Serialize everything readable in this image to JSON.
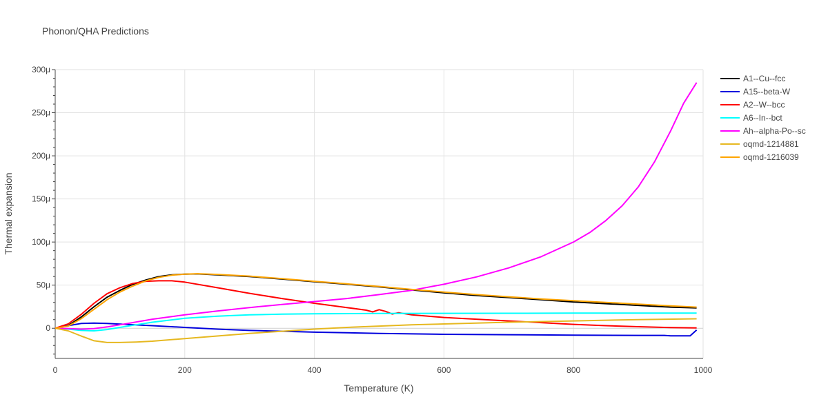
{
  "chart_data": {
    "type": "line",
    "title": "Phonon/QHA Predictions",
    "xlabel": "Temperature (K)",
    "ylabel": "Thermal expansion",
    "xlim": [
      0,
      1000
    ],
    "ylim": [
      -3.5e-05,
      0.0003
    ],
    "x_ticks": [
      0,
      200,
      400,
      600,
      800,
      1000
    ],
    "x_tick_labels": [
      "0",
      "200",
      "400",
      "600",
      "800",
      "1000"
    ],
    "y_ticks": [
      0,
      5e-05,
      0.0001,
      0.00015,
      0.0002,
      0.00025,
      0.0003
    ],
    "y_tick_labels": [
      "0",
      "50μ",
      "100μ",
      "150μ",
      "200μ",
      "250μ",
      "300μ"
    ],
    "grid": true,
    "legend_position": "right",
    "series": [
      {
        "name": "A1--Cu--fcc",
        "color": "#000000",
        "x": [
          0,
          20,
          40,
          60,
          80,
          100,
          120,
          140,
          160,
          180,
          200,
          220,
          250,
          300,
          350,
          400,
          450,
          500,
          550,
          600,
          650,
          700,
          750,
          800,
          850,
          900,
          950,
          990
        ],
        "y": [
          0,
          3e-06,
          1.3e-05,
          2.5e-05,
          3.6e-05,
          4.4e-05,
          5.1e-05,
          5.6e-05,
          6e-05,
          6.2e-05,
          6.28e-05,
          6.3e-05,
          6.2e-05,
          6e-05,
          5.7e-05,
          5.4e-05,
          5.1e-05,
          4.8e-05,
          4.45e-05,
          4.1e-05,
          3.8e-05,
          3.55e-05,
          3.3e-05,
          3.05e-05,
          2.85e-05,
          2.65e-05,
          2.45e-05,
          2.35e-05
        ]
      },
      {
        "name": "A15--beta-W",
        "color": "#0000dd",
        "x": [
          0,
          20,
          40,
          60,
          80,
          100,
          150,
          200,
          250,
          300,
          350,
          400,
          500,
          600,
          700,
          800,
          900,
          940,
          950,
          960,
          980,
          990
        ],
        "y": [
          0,
          3e-06,
          5.5e-06,
          6e-06,
          5.5e-06,
          4.8e-06,
          3e-06,
          1e-06,
          -1e-06,
          -2.5e-06,
          -3.5e-06,
          -4.5e-06,
          -6e-06,
          -7e-06,
          -7.5e-06,
          -8e-06,
          -8.3e-06,
          -8.3e-06,
          -8.8e-06,
          -8.8e-06,
          -8.8e-06,
          -2e-06
        ]
      },
      {
        "name": "A2--W--bcc",
        "color": "#ff0000",
        "x": [
          0,
          20,
          40,
          60,
          80,
          100,
          120,
          140,
          160,
          180,
          200,
          250,
          300,
          350,
          400,
          450,
          480,
          490,
          500,
          510,
          520,
          530,
          550,
          600,
          650,
          700,
          750,
          800,
          850,
          900,
          950,
          990
        ],
        "y": [
          0,
          5e-06,
          1.6e-05,
          2.9e-05,
          4e-05,
          4.7e-05,
          5.2e-05,
          5.45e-05,
          5.5e-05,
          5.5e-05,
          5.35e-05,
          4.7e-05,
          4.05e-05,
          3.45e-05,
          2.9e-05,
          2.4e-05,
          2.1e-05,
          1.9e-05,
          2.15e-05,
          1.95e-05,
          1.65e-05,
          1.8e-05,
          1.55e-05,
          1.25e-05,
          1.05e-05,
          8.5e-06,
          6.5e-06,
          4.5e-06,
          3e-06,
          1.8e-06,
          8e-07,
          3e-07
        ]
      },
      {
        "name": "A6--In--bct",
        "color": "#00ffff",
        "x": [
          0,
          20,
          40,
          60,
          80,
          100,
          125,
          150,
          200,
          250,
          300,
          350,
          400,
          500,
          600,
          700,
          800,
          900,
          990
        ],
        "y": [
          0,
          -1e-06,
          -2.5e-06,
          -3e-06,
          -1.5e-06,
          1e-06,
          4e-06,
          7e-06,
          1.15e-05,
          1.4e-05,
          1.55e-05,
          1.63e-05,
          1.67e-05,
          1.71e-05,
          1.73e-05,
          1.74e-05,
          1.75e-05,
          1.76e-05,
          1.76e-05
        ]
      },
      {
        "name": "Ah--alpha-Po--sc",
        "color": "#ff00ff",
        "x": [
          0,
          20,
          40,
          60,
          80,
          100,
          150,
          200,
          250,
          300,
          350,
          400,
          450,
          500,
          550,
          600,
          650,
          700,
          750,
          800,
          825,
          850,
          875,
          900,
          925,
          950,
          970,
          990
        ],
        "y": [
          0,
          -5e-07,
          -1e-06,
          -5e-07,
          1.5e-06,
          4e-06,
          1.05e-05,
          1.55e-05,
          2e-05,
          2.4e-05,
          2.75e-05,
          3.1e-05,
          3.45e-05,
          3.9e-05,
          4.4e-05,
          5.1e-05,
          5.95e-05,
          7e-05,
          8.3e-05,
          0.0001,
          0.000111,
          0.000125,
          0.000142,
          0.000164,
          0.000193,
          0.000229,
          0.000261,
          0.000285
        ]
      },
      {
        "name": "oqmd-1214881",
        "color": "#e6b820",
        "x": [
          0,
          20,
          40,
          60,
          80,
          100,
          125,
          150,
          200,
          250,
          300,
          350,
          400,
          450,
          500,
          550,
          600,
          700,
          800,
          900,
          990
        ],
        "y": [
          0,
          -3e-06,
          -9e-06,
          -1.45e-05,
          -1.65e-05,
          -1.65e-05,
          -1.6e-05,
          -1.5e-05,
          -1.2e-05,
          -9e-06,
          -6e-06,
          -3.5e-06,
          -1e-06,
          1e-06,
          2.5e-06,
          4e-06,
          5e-06,
          7e-06,
          8.5e-06,
          1e-05,
          1.1e-05
        ]
      },
      {
        "name": "oqmd-1216039",
        "color": "#ffa500",
        "x": [
          0,
          20,
          40,
          60,
          80,
          100,
          120,
          140,
          160,
          180,
          200,
          220,
          250,
          300,
          350,
          400,
          450,
          500,
          550,
          600,
          650,
          700,
          750,
          800,
          850,
          900,
          950,
          990
        ],
        "y": [
          0,
          2.5e-06,
          1.1e-05,
          2.2e-05,
          3.3e-05,
          4.2e-05,
          4.9e-05,
          5.5e-05,
          5.9e-05,
          6.15e-05,
          6.28e-05,
          6.33e-05,
          6.25e-05,
          6.05e-05,
          5.75e-05,
          5.45e-05,
          5.15e-05,
          4.85e-05,
          4.5e-05,
          4.2e-05,
          3.9e-05,
          3.65e-05,
          3.4e-05,
          3.2e-05,
          3e-05,
          2.8e-05,
          2.6e-05,
          2.45e-05
        ]
      }
    ]
  }
}
